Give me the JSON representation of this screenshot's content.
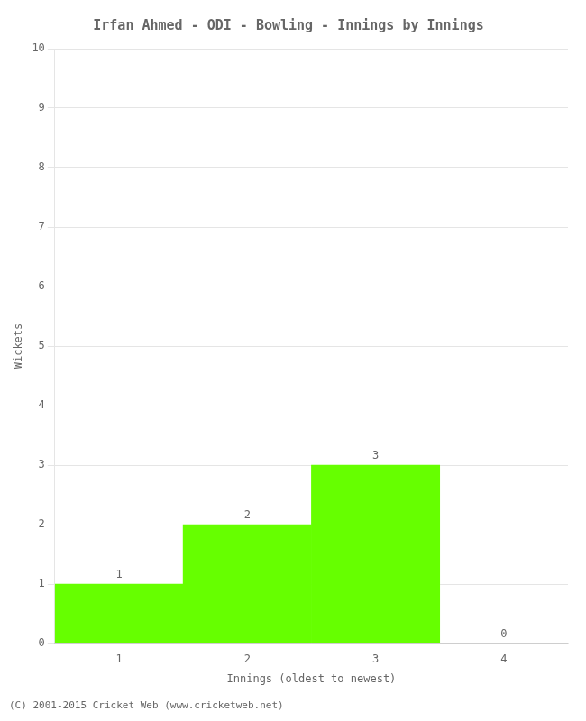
{
  "chart_data": {
    "type": "bar",
    "title": "Irfan Ahmed - ODI - Bowling - Innings by Innings",
    "x_label": "Innings (oldest to newest)",
    "y_label": "Wickets",
    "categories": [
      "1",
      "2",
      "3",
      "4"
    ],
    "values": [
      1,
      2,
      3,
      0
    ],
    "color": "#66ff00",
    "ylim": [
      0,
      10
    ],
    "yticks": [
      0,
      1,
      2,
      3,
      4,
      5,
      6,
      7,
      8,
      9,
      10
    ],
    "grid": true,
    "data_labels": true,
    "annotations": [
      "(C) 2001-2015 Cricket Web (www.cricketweb.net)"
    ]
  }
}
